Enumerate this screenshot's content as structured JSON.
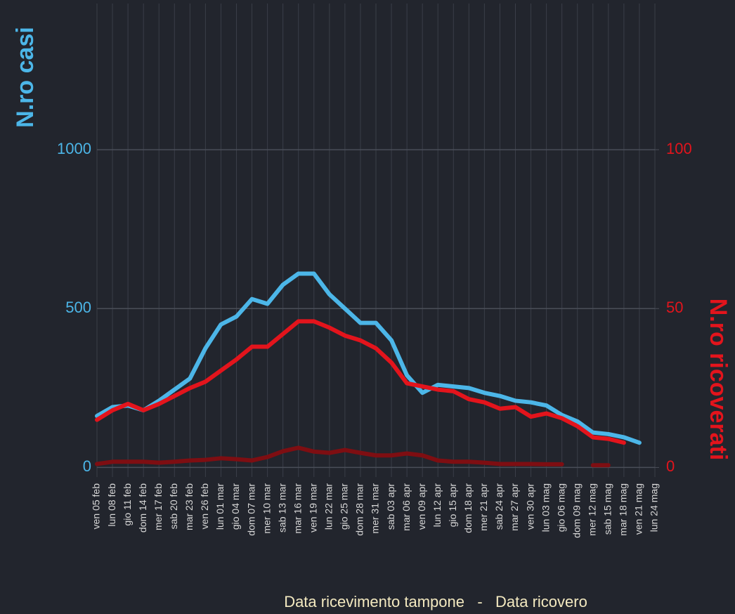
{
  "chart_data": {
    "type": "line",
    "y_label": "N.ro casi",
    "y2_label": "N.ro ricoverati",
    "x_label": "Data ricevimento tampone   -   Data ricovero",
    "categories": [
      "ven 05 feb",
      "lun 08 feb",
      "gio 11 feb",
      "dom 14 feb",
      "mer 17 feb",
      "sab 20 feb",
      "mar 23 feb",
      "ven 26 feb",
      "lun 01 mar",
      "gio 04 mar",
      "dom 07 mar",
      "mer 10 mar",
      "sab 13 mar",
      "mar 16 mar",
      "ven 19 mar",
      "lun 22 mar",
      "gio 25 mar",
      "dom 28 mar",
      "mer 31 mar",
      "sab 03 apr",
      "mar 06 apr",
      "ven 09 apr",
      "lun 12 apr",
      "gio 15 apr",
      "dom 18 apr",
      "mer 21 apr",
      "sab 24 apr",
      "mar 27 apr",
      "ven 30 apr",
      "lun 03 mag",
      "gio 06 mag",
      "dom 09 mag",
      "mer 12 mag",
      "sab 15 mag",
      "mar 18 mag",
      "ven 21 mag",
      "lun 24 mag"
    ],
    "series": [
      {
        "color": "#4cb6e8",
        "values": [
          162,
          190,
          195,
          180,
          210,
          245,
          280,
          375,
          450,
          475,
          530,
          515,
          575,
          610,
          610,
          545,
          500,
          455,
          455,
          400,
          290,
          235,
          260,
          255,
          250,
          235,
          225,
          210,
          205,
          195,
          165,
          145,
          110,
          105,
          95,
          78,
          null
        ]
      },
      {
        "color": "#e3141c",
        "axis": "y2",
        "values": [
          15,
          18,
          20,
          18,
          20,
          22.5,
          25,
          27,
          30.5,
          34,
          38,
          38,
          42,
          46,
          46,
          44,
          41.5,
          40,
          37.5,
          33,
          26.5,
          25.5,
          24.5,
          24,
          21.5,
          20.5,
          18.5,
          19,
          16,
          17,
          15.5,
          13,
          9.5,
          9,
          7.8,
          null,
          null
        ]
      },
      {
        "color": "#7e0e12",
        "axis": "y2",
        "values": [
          1.1,
          1.8,
          1.8,
          1.8,
          1.5,
          1.8,
          2.2,
          2.4,
          2.9,
          2.6,
          2.2,
          3.3,
          5.1,
          6.2,
          5,
          4.6,
          5.5,
          4.6,
          3.8,
          3.8,
          4.4,
          3.8,
          2.2,
          1.8,
          1.8,
          1.5,
          1.1,
          1.1,
          1.1,
          1,
          1,
          null,
          0.7,
          0.7,
          null,
          null,
          null
        ]
      }
    ],
    "ylim": [
      -30,
      1460
    ],
    "yticks": [
      0,
      500,
      1000
    ],
    "y2lim": [
      -3,
      146
    ],
    "y2ticks": [
      0,
      50,
      100
    ],
    "grid": true
  }
}
